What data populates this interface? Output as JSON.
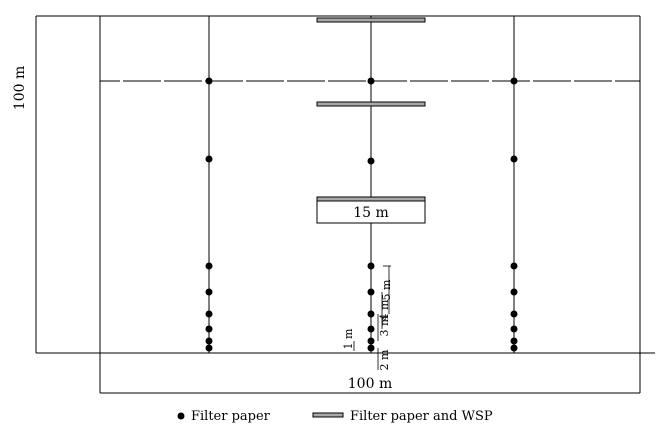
{
  "labels": {
    "height_dim": "100 m",
    "width_dim": "100 m",
    "box_label": "15 m",
    "dim_1m": "1 m",
    "dim_2m": "2 m",
    "dim_3m": "3 m",
    "dim_4m": "4 m",
    "dim_5m": "5 m"
  },
  "legend": {
    "filter_paper": "Filter paper",
    "filter_paper_wsp": "Filter paper and WSP"
  },
  "colors": {
    "line": "#000000",
    "dash": "#bbbbbb",
    "strip_fill": "#aaaaaa"
  }
}
